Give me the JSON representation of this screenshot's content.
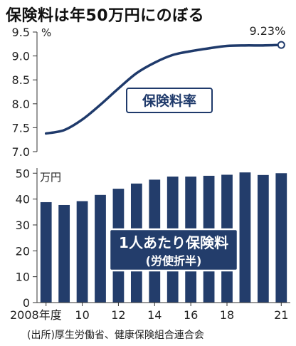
{
  "title": "保険料は年50万円にのぼる",
  "source": "(出所)厚生労働省、健康保険組合連合会",
  "colors": {
    "line": "#1f3a6b",
    "bar": "#233d6b",
    "axis": "#333333",
    "grid": "#555555"
  },
  "chart_data": [
    {
      "type": "line",
      "series": [
        {
          "name": "保険料率",
          "x": [
            2008,
            2009,
            2010,
            2011,
            2012,
            2013,
            2014,
            2015,
            2016,
            2017,
            2018,
            2019,
            2020,
            2021
          ],
          "values": [
            7.38,
            7.45,
            7.67,
            7.98,
            8.32,
            8.64,
            8.86,
            9.02,
            9.1,
            9.16,
            9.21,
            9.22,
            9.22,
            9.23
          ]
        }
      ],
      "ylabel": "%",
      "ylim": [
        7.0,
        9.5
      ],
      "yticks": [
        "7.0",
        "7.5",
        "8.0",
        "8.5",
        "9.0",
        "9.5"
      ],
      "end_label": "9.23%"
    },
    {
      "type": "bar",
      "series": [
        {
          "name": "1人あたり保険料",
          "subtitle": "(労使折半)",
          "x": [
            2008,
            2009,
            2010,
            2011,
            2012,
            2013,
            2014,
            2015,
            2016,
            2017,
            2018,
            2019,
            2020,
            2021
          ],
          "values": [
            38.8,
            37.7,
            39.2,
            41.6,
            44.0,
            46.0,
            47.5,
            48.7,
            48.7,
            49.0,
            49.4,
            50.3,
            49.3,
            50.0
          ]
        }
      ],
      "ylabel": "万円",
      "ylim": [
        0,
        52
      ],
      "yticks": [
        "0",
        "10",
        "20",
        "30",
        "40",
        "50"
      ],
      "xtick_labels": [
        {
          "x": 2008,
          "text": "2008年度"
        },
        {
          "x": 2010,
          "text": "10"
        },
        {
          "x": 2012,
          "text": "12"
        },
        {
          "x": 2014,
          "text": "14"
        },
        {
          "x": 2016,
          "text": "16"
        },
        {
          "x": 2018,
          "text": "18"
        },
        {
          "x": 2021,
          "text": "21"
        }
      ]
    }
  ]
}
